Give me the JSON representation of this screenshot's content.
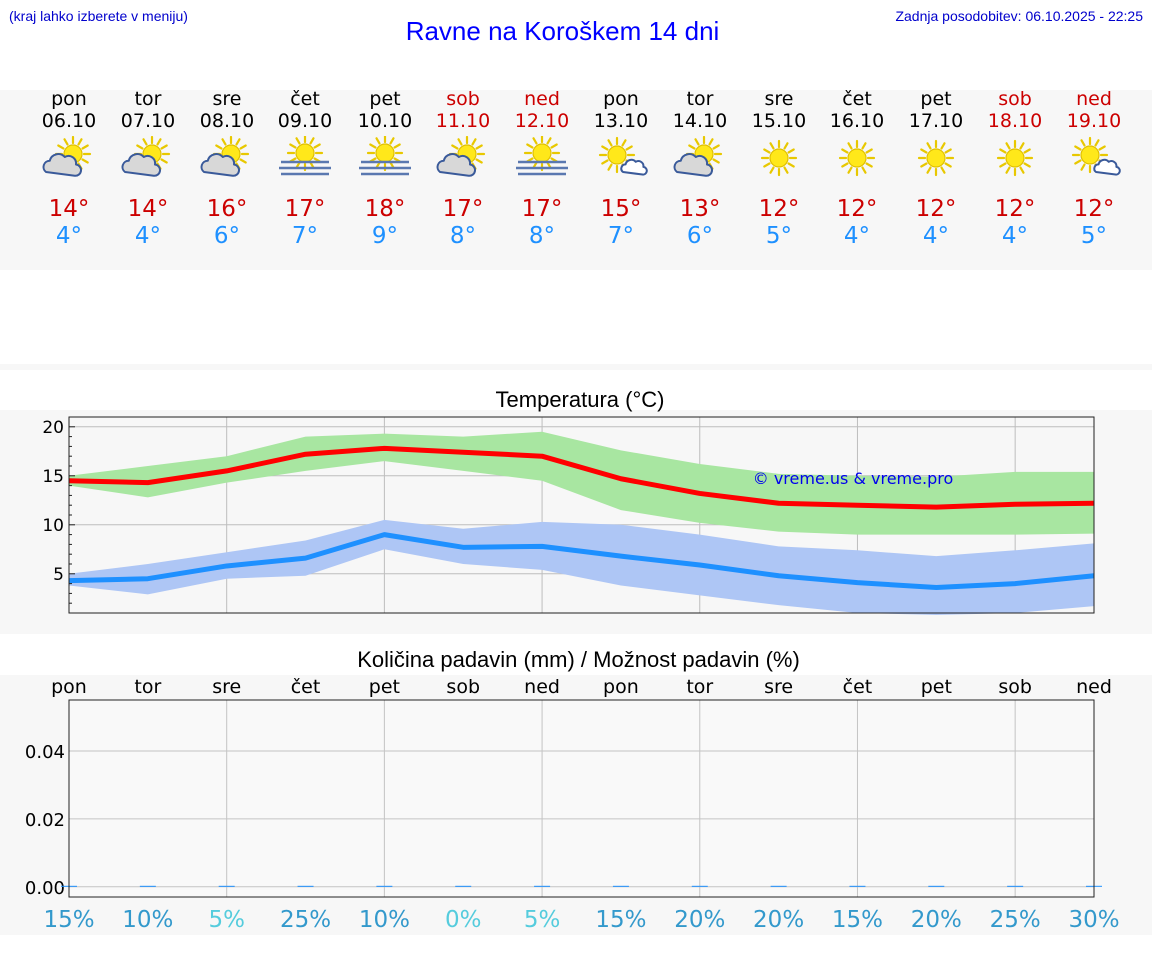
{
  "header": {
    "hint": "(kraj lahko izberete v meniju)",
    "title": "Ravne na Koroškem 14 dni",
    "updated": "Zadnja posodobitev: 06.10.2025 - 22:25"
  },
  "days": [
    {
      "name": "pon",
      "date": "06.10",
      "icon": "partly-cloudy-icon",
      "max": "14°",
      "min": "4°",
      "weekend": false
    },
    {
      "name": "tor",
      "date": "07.10",
      "icon": "partly-cloudy-icon",
      "max": "14°",
      "min": "4°",
      "weekend": false
    },
    {
      "name": "sre",
      "date": "08.10",
      "icon": "partly-cloudy-icon",
      "max": "16°",
      "min": "6°",
      "weekend": false
    },
    {
      "name": "čet",
      "date": "09.10",
      "icon": "sun-fog-icon",
      "max": "17°",
      "min": "7°",
      "weekend": false
    },
    {
      "name": "pet",
      "date": "10.10",
      "icon": "sun-fog-icon",
      "max": "18°",
      "min": "9°",
      "weekend": false
    },
    {
      "name": "sob",
      "date": "11.10",
      "icon": "partly-cloudy-icon",
      "max": "17°",
      "min": "8°",
      "weekend": true
    },
    {
      "name": "ned",
      "date": "12.10",
      "icon": "sun-fog-icon",
      "max": "17°",
      "min": "8°",
      "weekend": true
    },
    {
      "name": "pon",
      "date": "13.10",
      "icon": "sun-small-cloud-icon",
      "max": "15°",
      "min": "7°",
      "weekend": false
    },
    {
      "name": "tor",
      "date": "14.10",
      "icon": "partly-cloudy-icon",
      "max": "13°",
      "min": "6°",
      "weekend": false
    },
    {
      "name": "sre",
      "date": "15.10",
      "icon": "sun-icon",
      "max": "12°",
      "min": "5°",
      "weekend": false
    },
    {
      "name": "čet",
      "date": "16.10",
      "icon": "sun-icon",
      "max": "12°",
      "min": "4°",
      "weekend": false
    },
    {
      "name": "pet",
      "date": "17.10",
      "icon": "sun-icon",
      "max": "12°",
      "min": "4°",
      "weekend": false
    },
    {
      "name": "sob",
      "date": "18.10",
      "icon": "sun-icon",
      "max": "12°",
      "min": "4°",
      "weekend": true
    },
    {
      "name": "ned",
      "date": "19.10",
      "icon": "sun-small-cloud-icon",
      "max": "12°",
      "min": "5°",
      "weekend": true
    }
  ],
  "colors": {
    "max_line": "#ff0000",
    "max_band": "#a8e6a1",
    "min_line": "#1e90ff",
    "min_band": "#aec6f5",
    "precip_good": "#3399cc",
    "precip_low": "#55ccdd"
  },
  "chart_data": [
    {
      "type": "line",
      "title": "Temperatura (°C)",
      "ylim": [
        1,
        21
      ],
      "yticks": [
        5,
        10,
        15,
        20
      ],
      "x": [
        0,
        1,
        2,
        3,
        4,
        5,
        6,
        7,
        8,
        9,
        10,
        11,
        12,
        13
      ],
      "series": [
        {
          "name": "max",
          "values": [
            14.5,
            14.3,
            15.5,
            17.2,
            17.8,
            17.4,
            17.0,
            14.7,
            13.2,
            12.2,
            12.0,
            11.8,
            12.1,
            12.2
          ]
        },
        {
          "name": "min",
          "values": [
            4.3,
            4.5,
            5.8,
            6.6,
            9.0,
            7.7,
            7.8,
            6.8,
            5.9,
            4.8,
            4.1,
            3.6,
            4.0,
            4.8
          ]
        }
      ],
      "bands": [
        {
          "name": "max",
          "upper": [
            15.0,
            16.0,
            17.0,
            19.0,
            19.3,
            19.0,
            19.5,
            17.6,
            16.2,
            15.2,
            15.0,
            14.9,
            15.4,
            15.4
          ],
          "lower": [
            14.0,
            12.8,
            14.3,
            15.5,
            16.5,
            15.5,
            14.5,
            11.5,
            10.2,
            9.3,
            9.0,
            9.0,
            9.0,
            9.1
          ]
        },
        {
          "name": "min",
          "upper": [
            5.0,
            6.0,
            7.2,
            8.4,
            10.5,
            9.6,
            10.3,
            10.0,
            9.0,
            7.8,
            7.4,
            6.8,
            7.4,
            8.1
          ],
          "lower": [
            3.8,
            2.9,
            4.5,
            4.8,
            7.5,
            6.0,
            5.4,
            3.8,
            2.8,
            1.8,
            1.0,
            0.8,
            1.0,
            1.7
          ]
        }
      ],
      "watermark": "© vreme.us & vreme.pro"
    },
    {
      "type": "bar",
      "title": "Količina padavin (mm) / Možnost padavin (%)",
      "categories": [
        "pon",
        "tor",
        "sre",
        "čet",
        "pet",
        "sob",
        "ned",
        "pon",
        "tor",
        "sre",
        "čet",
        "pet",
        "sob",
        "ned"
      ],
      "values": [
        0,
        0,
        0,
        0,
        0,
        0,
        0,
        0,
        0,
        0,
        0,
        0,
        0,
        0
      ],
      "ylim": [
        -0.003,
        0.055
      ],
      "yticks": [
        "0.00",
        "0.02",
        "0.04"
      ],
      "ytick_values": [
        0,
        0.02,
        0.04
      ],
      "probability": [
        "15%",
        "10%",
        "5%",
        "25%",
        "10%",
        "0%",
        "5%",
        "15%",
        "20%",
        "20%",
        "15%",
        "20%",
        "25%",
        "30%"
      ],
      "probability_values": [
        15,
        10,
        5,
        25,
        10,
        0,
        5,
        15,
        20,
        20,
        15,
        20,
        25,
        30
      ]
    }
  ]
}
